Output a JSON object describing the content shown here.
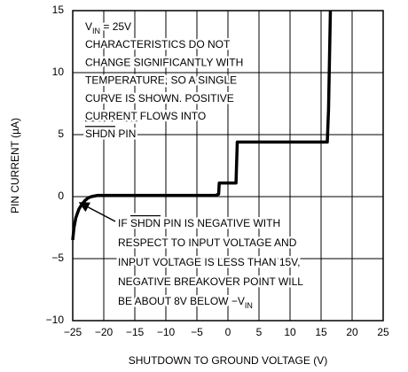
{
  "chart_data": {
    "type": "line",
    "xlabel": "SHUTDOWN TO GROUND VOLTAGE (V)",
    "ylabel": "PIN CURRENT (µA)",
    "xlim": [
      -25,
      25
    ],
    "ylim": [
      -10,
      15
    ],
    "xticks": [
      {
        "value": -25,
        "label": "−25"
      },
      {
        "value": -20,
        "label": "−20"
      },
      {
        "value": -15,
        "label": "−15"
      },
      {
        "value": -10,
        "label": "−10"
      },
      {
        "value": -5,
        "label": "−5"
      },
      0,
      5,
      10,
      15,
      20,
      25
    ],
    "yticks": [
      {
        "value": -10,
        "label": "−10"
      },
      {
        "value": -5,
        "label": "−5"
      },
      0,
      5,
      10,
      15
    ],
    "grid": true,
    "series": [
      {
        "color": "#000000",
        "x": [
          -25,
          -24.8,
          -24.5,
          -24,
          -23.5,
          -23,
          -22.5,
          -22,
          -21,
          -2,
          -1.5,
          -1.4,
          1.3,
          1.5,
          16,
          16.2,
          16.5
        ],
        "values": [
          -3.5,
          -2.5,
          -1.7,
          -1.0,
          -0.6,
          -0.3,
          -0.1,
          0.0,
          0.1,
          0.1,
          0.2,
          1.1,
          1.1,
          4.4,
          4.4,
          7,
          15
        ]
      }
    ],
    "annotations": [
      {
        "lines": [
          [
            {
              "text": "V"
            },
            {
              "text": "IN",
              "style": "sub"
            },
            {
              "text": " = 25V"
            }
          ],
          [
            {
              "text": "CHARACTERISTICS DO NOT"
            }
          ],
          [
            {
              "text": "CHANGE SIGNIFICANTLY WITH"
            }
          ],
          [
            {
              "text": "TEMPERATURE, SO A SINGLE"
            }
          ],
          [
            {
              "text": "CURVE IS SHOWN. POSITIVE"
            }
          ],
          [
            {
              "text": "CURRENT",
              "style": "underline"
            },
            {
              "text": " FLOWS INTO"
            }
          ],
          [
            {
              "text": "SHDN",
              "style": "overline"
            },
            {
              "text": " PIN"
            }
          ]
        ]
      },
      {
        "lines": [
          [
            {
              "text": "IF "
            },
            {
              "text": "SHDN",
              "style": "overline"
            },
            {
              "text": " PIN IS NEGATIVE WITH"
            }
          ],
          [
            {
              "text": "RESPECT TO INPUT VOLTAGE AND"
            }
          ],
          [
            {
              "text": "INPUT VOLTAGE IS LESS THAN 15V,"
            }
          ],
          [
            {
              "text": "NEGATIVE BREAKOVER POINT WILL"
            }
          ],
          [
            {
              "text": "BE ABOUT 8V BELOW −V"
            },
            {
              "text": "IN",
              "style": "sub"
            }
          ]
        ]
      }
    ]
  }
}
